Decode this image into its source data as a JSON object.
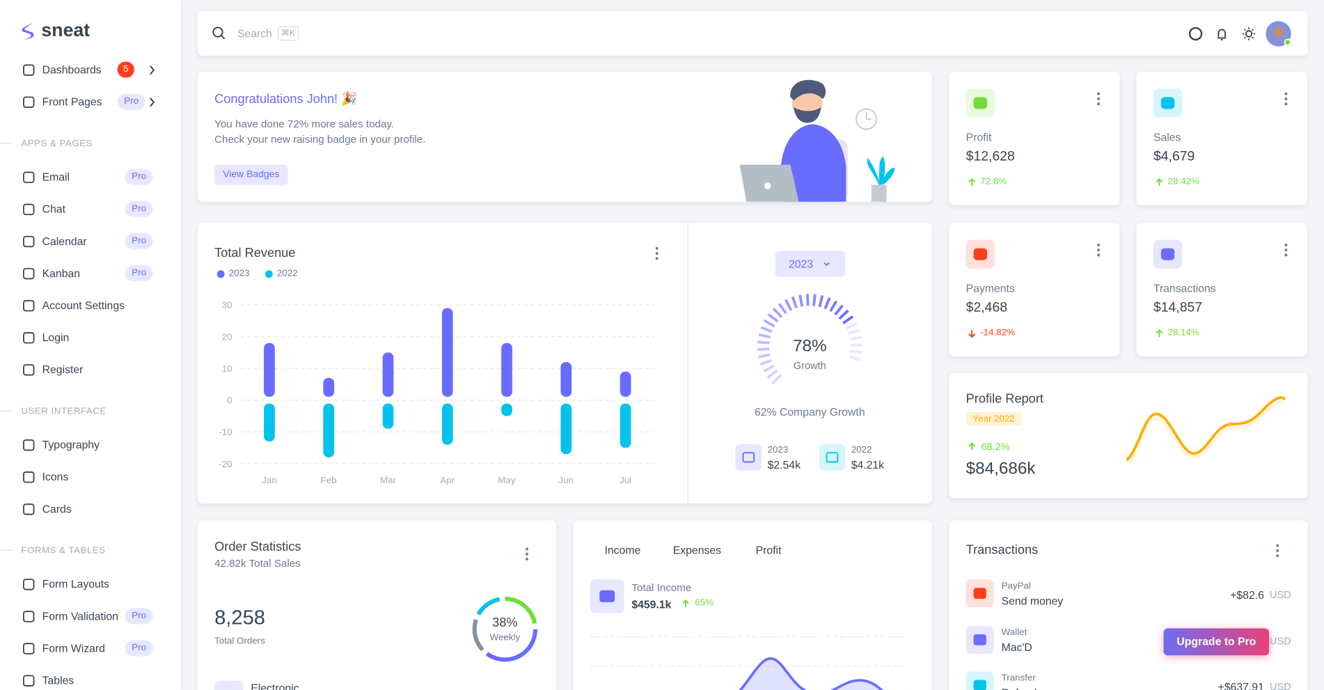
{
  "sidebar": {
    "logo": "sneat",
    "menu": [
      {
        "label": "Dashboards",
        "badge": 5
      },
      {
        "label": "Front Pages",
        "badge": "Pro"
      }
    ],
    "sections": [
      {
        "title": "APPS & PAGES",
        "items": [
          {
            "label": "Email",
            "badge": "Pro"
          },
          {
            "label": "Chat",
            "badge": "Pro"
          },
          {
            "label": "Calendar",
            "badge": "Pro"
          },
          {
            "label": "Kanban",
            "badge": "Pro"
          },
          {
            "label": "Account Settings"
          },
          {
            "label": "Login"
          },
          {
            "label": "Register"
          }
        ]
      },
      {
        "title": "USER INTERFACE",
        "items": [
          {
            "label": "Typography"
          },
          {
            "label": "Icons"
          },
          {
            "label": "Cards"
          }
        ]
      },
      {
        "title": "FORMS & TABLES",
        "items": [
          {
            "label": "Form Layouts"
          },
          {
            "label": "Form Validation",
            "badge": "Pro"
          },
          {
            "label": "Form Wizard",
            "badge": "Pro"
          },
          {
            "label": "Tables"
          }
        ]
      }
    ]
  },
  "header": {
    "search": "Search",
    "shortcut": "⌘K"
  },
  "welcome": {
    "title": "Congratulations John! 🎉",
    "line1": "You have done 72% more sales today.",
    "line2": "Check your new raising badge in your profile.",
    "button": "View Badges"
  },
  "stats": [
    {
      "label": "Profit",
      "value": "$12,628",
      "change": "72.8%",
      "trend": "up",
      "color": "#71dd37",
      "bg": "#e8fadf"
    },
    {
      "label": "Sales",
      "value": "$4,679",
      "change": "28.42%",
      "trend": "up",
      "color": "#03c3ec",
      "bg": "#d7f5fc"
    },
    {
      "label": "Payments",
      "value": "$2,468",
      "change": "-14.82%",
      "trend": "down",
      "color": "#ff3e1d",
      "bg": "#ffe0db"
    },
    {
      "label": "Transactions",
      "value": "$14,857",
      "change": "28.14%",
      "trend": "up",
      "color": "#696cff",
      "bg": "#e7e7ff"
    }
  ],
  "chart_data": {
    "type": "bar",
    "title": "Total Revenue",
    "categories": [
      "Jan",
      "Feb",
      "Mar",
      "Apr",
      "May",
      "Jun",
      "Jul"
    ],
    "series": [
      {
        "name": "2023",
        "color": "#696cff",
        "values": [
          18,
          7,
          15,
          29,
          18,
          12,
          9
        ]
      },
      {
        "name": "2022",
        "color": "#03c3ec",
        "values": [
          -13,
          -18,
          -9,
          -14,
          -5,
          -17,
          -15
        ]
      }
    ],
    "ylim": [
      -20,
      30
    ],
    "yticks": [
      -20,
      -10,
      0,
      10,
      20,
      30
    ],
    "grid": true
  },
  "growth": {
    "year": "2023",
    "percent": 78,
    "percent_label": "78%",
    "caption": "Growth",
    "company": "62% Company Growth",
    "items": [
      {
        "year": "2023",
        "value": "$2.54k"
      },
      {
        "year": "2022",
        "value": "$4.21k"
      }
    ]
  },
  "profile": {
    "title": "Profile Report",
    "badge": "Year 2022",
    "change": "68.2%",
    "value": "$84,686k"
  },
  "orders": {
    "title": "Order Statistics",
    "subtitle": "42.82k Total Sales",
    "total": "8,258",
    "total_label": "Total Orders",
    "percent": "38%",
    "period": "Weekly",
    "first_item": "Electronic"
  },
  "income": {
    "tabs": [
      "Income",
      "Expenses",
      "Profit"
    ],
    "label": "Total Income",
    "value": "$459.1k",
    "change": "65%"
  },
  "transactions": {
    "title": "Transactions",
    "rows": [
      {
        "source": "PayPal",
        "desc": "Send money",
        "amount": "+$82.6",
        "currency": "USD",
        "color": "#ff3e1d",
        "bg": "#ffe0db"
      },
      {
        "source": "Wallet",
        "desc": "Mac'D",
        "currency": "USD",
        "color": "#696cff",
        "bg": "#e7e7ff"
      },
      {
        "source": "Transfer",
        "desc": "Refund",
        "amount": "+$637.91",
        "currency": "USD",
        "color": "#03c3ec",
        "bg": "#d7f5fc"
      }
    ]
  },
  "upgrade": "Upgrade to Pro"
}
